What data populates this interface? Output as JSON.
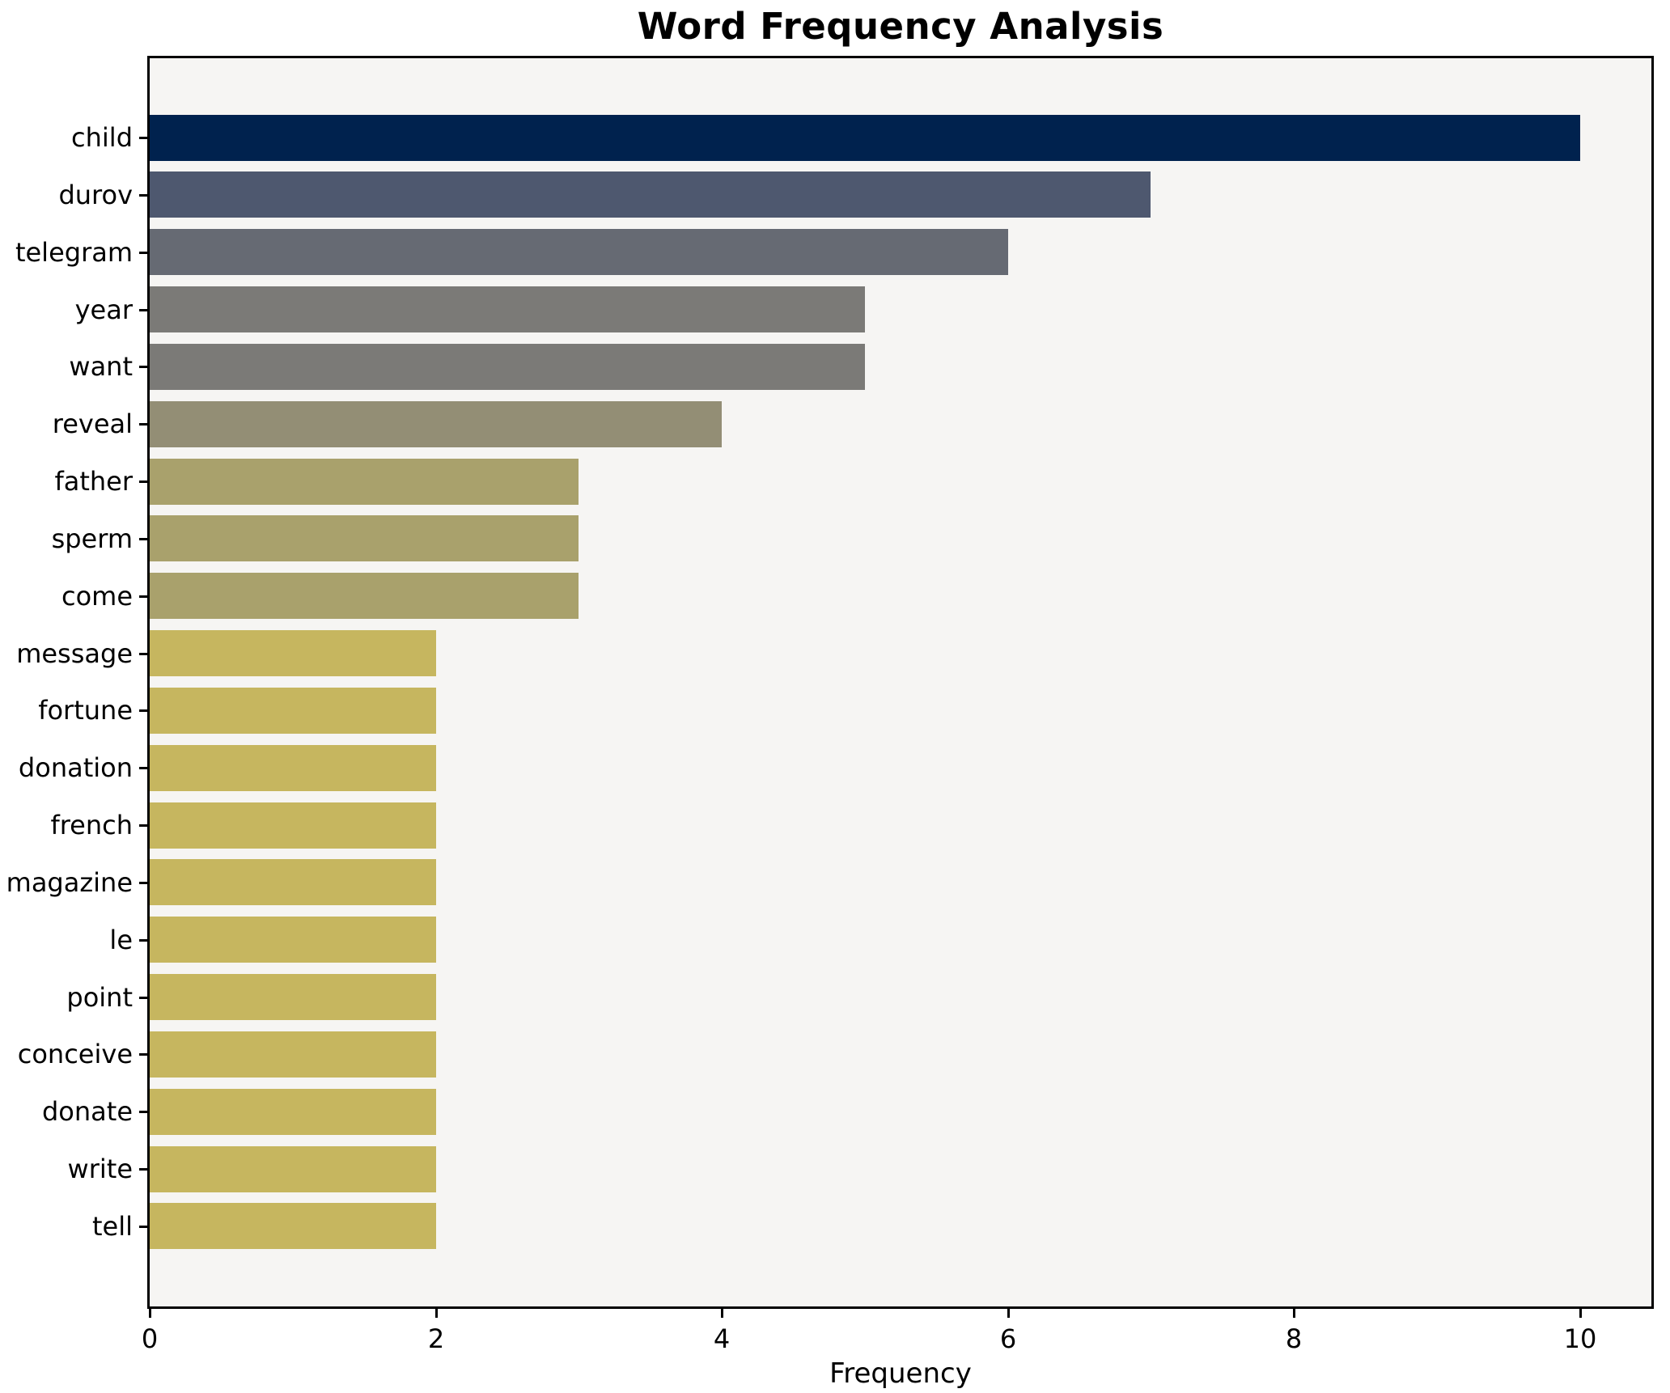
{
  "title": "Word Frequency Analysis",
  "chart_data": {
    "type": "bar",
    "orientation": "horizontal",
    "title": "Word Frequency Analysis",
    "xlabel": "Frequency",
    "ylabel": "",
    "categories": [
      "child",
      "durov",
      "telegram",
      "year",
      "want",
      "reveal",
      "father",
      "sperm",
      "come",
      "message",
      "fortune",
      "donation",
      "french",
      "magazine",
      "le",
      "point",
      "conceive",
      "donate",
      "write",
      "tell"
    ],
    "values": [
      10,
      7,
      6,
      5,
      5,
      4,
      3,
      3,
      3,
      2,
      2,
      2,
      2,
      2,
      2,
      2,
      2,
      2,
      2,
      2
    ],
    "bar_colors": [
      "#00224e",
      "#4e586f",
      "#666a73",
      "#7b7a77",
      "#7b7a77",
      "#938e75",
      "#a9a16c",
      "#a9a16c",
      "#a9a16c",
      "#c6b65f",
      "#c6b65f",
      "#c6b65f",
      "#c6b65f",
      "#c6b65f",
      "#c6b65f",
      "#c6b65f",
      "#c6b65f",
      "#c6b65f",
      "#c6b65f",
      "#c6b65f"
    ],
    "xlim": [
      0,
      10.5
    ],
    "xticks": [
      0,
      2,
      4,
      6,
      8,
      10
    ],
    "grid": false,
    "legend": false,
    "plot_bg": "#f6f5f3",
    "frame_color": "#000000",
    "bar_height_fraction": 0.8
  }
}
